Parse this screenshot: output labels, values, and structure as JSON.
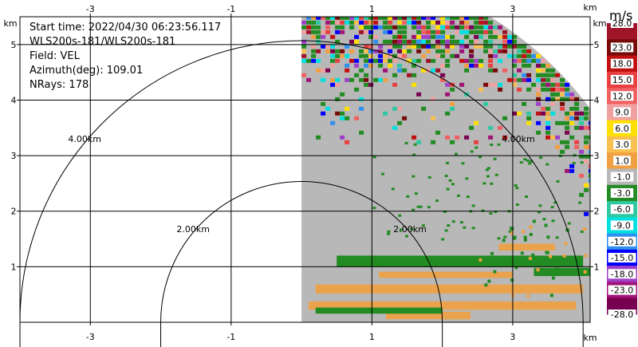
{
  "info": {
    "start_time": "Start time: 2022/04/30 06:23:56.117",
    "instrument": "WLS200s-181/WLS200s-181",
    "field": "Field: VEL",
    "azimuth": "Azimuth(deg): 109.01",
    "nrays": "NRays: 178"
  },
  "chart_data": {
    "type": "heatmap",
    "subtype": "radar RHI scan (radial velocity)",
    "x_unit": "km",
    "y_unit": "km",
    "xlim": [
      -4.0,
      4.1
    ],
    "ylim": [
      0,
      5.5
    ],
    "x_ticks": [
      -3,
      -1,
      1,
      3
    ],
    "y_ticks": [
      1,
      2,
      3,
      4,
      5
    ],
    "grid": true,
    "range_rings": [
      {
        "radius_km": 2.0,
        "label": "2.00km"
      },
      {
        "radius_km": 4.0,
        "label": "4.00km"
      }
    ],
    "scan": {
      "min_x_km": 0,
      "max_range_km": 5.1,
      "nrays": 178
    },
    "colorbar": {
      "unit": "m/s",
      "labels": [
        "28.0",
        "23.0",
        "18.0",
        "15.0",
        "12.0",
        "9.0",
        "6.0",
        "3.0",
        "1.0",
        "-1.0",
        "-3.0",
        "-6.0",
        "-9.0",
        "-12.0",
        "-15.0",
        "-18.0",
        "-23.0",
        "-28.0"
      ],
      "colors": [
        "#a01428",
        "#780a0a",
        "#c01010",
        "#e84040",
        "#f06060",
        "#f0a0a0",
        "#ffe000",
        "#f8c050",
        "#f0a040",
        "#b8b8b8",
        "#228b22",
        "#30c8a0",
        "#00e0e0",
        "#3090f0",
        "#0000ff",
        "#a040c8",
        "#a01478",
        "#780050"
      ]
    }
  }
}
